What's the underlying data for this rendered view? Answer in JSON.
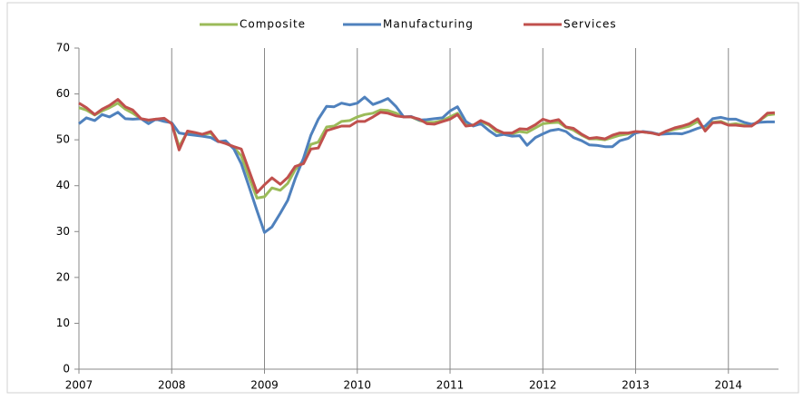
{
  "chart_data": {
    "type": "line",
    "x": [
      2007,
      2007.08,
      2007.17,
      2007.25,
      2007.33,
      2007.42,
      2007.5,
      2007.58,
      2007.67,
      2007.75,
      2007.83,
      2007.92,
      2008,
      2008.08,
      2008.17,
      2008.25,
      2008.33,
      2008.42,
      2008.5,
      2008.58,
      2008.67,
      2008.75,
      2008.83,
      2008.92,
      2009,
      2009.08,
      2009.17,
      2009.25,
      2009.33,
      2009.42,
      2009.5,
      2009.58,
      2009.67,
      2009.75,
      2009.83,
      2009.92,
      2010,
      2010.08,
      2010.17,
      2010.25,
      2010.33,
      2010.42,
      2010.5,
      2010.58,
      2010.67,
      2010.75,
      2010.83,
      2010.92,
      2011,
      2011.08,
      2011.17,
      2011.25,
      2011.33,
      2011.42,
      2011.5,
      2011.58,
      2011.67,
      2011.75,
      2011.83,
      2011.92,
      2012,
      2012.08,
      2012.17,
      2012.25,
      2012.33,
      2012.42,
      2012.5,
      2012.58,
      2012.67,
      2012.75,
      2012.83,
      2012.92,
      2013,
      2013.08,
      2013.17,
      2013.25,
      2013.33,
      2013.42,
      2013.5,
      2013.58,
      2013.67,
      2013.75,
      2013.83,
      2013.92,
      2014,
      2014.08,
      2014.17,
      2014.25,
      2014.33,
      2014.42,
      2014.5
    ],
    "series": [
      {
        "name": "Composite",
        "color": "#9bbb59",
        "values": [
          57,
          56.5,
          55.4,
          56.3,
          57,
          58,
          56.7,
          55.8,
          54.6,
          54.2,
          54.5,
          54.4,
          53.6,
          48.5,
          51.7,
          51.4,
          51.1,
          51.5,
          49.7,
          49.3,
          48.3,
          46.5,
          42,
          37.3,
          37.6,
          39.5,
          39,
          40.5,
          43.5,
          45.5,
          49,
          49.5,
          52.8,
          53,
          54,
          54.2,
          55,
          55.5,
          55.8,
          56.5,
          56.4,
          55.8,
          55,
          55,
          54.2,
          53.8,
          53.8,
          54.2,
          55,
          55.8,
          53.5,
          53.2,
          54,
          53.2,
          51.8,
          51.4,
          51.3,
          51.8,
          51.6,
          52.6,
          53.5,
          53.7,
          53.8,
          52.7,
          52.1,
          51,
          50.2,
          50.2,
          50,
          50.5,
          51,
          51.3,
          51.7,
          51.7,
          51.5,
          51.2,
          51.8,
          52.3,
          52.6,
          53,
          54,
          52.2,
          53.8,
          54,
          53.3,
          53.5,
          53.2,
          53.1,
          54.1,
          55.4,
          55.6
        ]
      },
      {
        "name": "Manufacturing",
        "color": "#4f81bd",
        "values": [
          53.5,
          54.8,
          54.2,
          55.5,
          55,
          56,
          54.6,
          54.5,
          54.6,
          53.5,
          54.5,
          54,
          53.7,
          51.5,
          51.2,
          51,
          50.8,
          50.5,
          49.6,
          49.8,
          48,
          44.8,
          40,
          34.5,
          29.8,
          31,
          34,
          36.8,
          41.5,
          46,
          51,
          54.5,
          57.3,
          57.2,
          58,
          57.6,
          58,
          59.3,
          57.7,
          58.3,
          59,
          57.2,
          55,
          55.1,
          54.3,
          54.4,
          54.6,
          54.8,
          56.3,
          57.2,
          54,
          53,
          53.5,
          52,
          50.9,
          51.2,
          50.8,
          50.9,
          48.8,
          50.5,
          51.3,
          52,
          52.3,
          51.8,
          50.5,
          49.8,
          48.9,
          48.8,
          48.5,
          48.5,
          49.8,
          50.3,
          51.5,
          51.8,
          51.6,
          51.2,
          51.3,
          51.4,
          51.3,
          51.8,
          52.5,
          53,
          54.6,
          54.9,
          54.5,
          54.5,
          53.8,
          53.4,
          53.8,
          53.9,
          53.9
        ]
      },
      {
        "name": "Services",
        "color": "#c0504d",
        "values": [
          58,
          57,
          55.5,
          56.7,
          57.5,
          58.8,
          57.2,
          56.5,
          54.6,
          54.3,
          54.5,
          54.7,
          53.5,
          47.8,
          51.9,
          51.6,
          51.2,
          51.8,
          49.7,
          49.2,
          48.5,
          48,
          43.5,
          38.5,
          40.2,
          41.7,
          40.3,
          41.8,
          44.2,
          44.8,
          48,
          48.2,
          52,
          52.5,
          53,
          53,
          54,
          54,
          55,
          56,
          55.8,
          55.2,
          55,
          55,
          54.5,
          53.5,
          53.4,
          54,
          54.5,
          55.5,
          53,
          53.2,
          54.2,
          53.4,
          52.2,
          51.5,
          51.5,
          52.4,
          52.3,
          53.3,
          54.5,
          54,
          54.4,
          52.8,
          52.5,
          51.2,
          50.3,
          50.5,
          50.2,
          51,
          51.5,
          51.5,
          51.8,
          51.7,
          51.5,
          51.1,
          51.9,
          52.6,
          53,
          53.5,
          54.6,
          51.9,
          53.7,
          53.8,
          53.2,
          53.2,
          53,
          53,
          54.1,
          55.8,
          55.9
        ]
      }
    ],
    "xlim": [
      2007,
      2014.54
    ],
    "xticks": [
      2007,
      2008,
      2009,
      2010,
      2011,
      2012,
      2013,
      2014
    ],
    "ylim": [
      0,
      70
    ],
    "yticks": [
      0,
      10,
      20,
      30,
      40,
      50,
      60,
      70
    ],
    "grid": true,
    "legend": "top"
  }
}
